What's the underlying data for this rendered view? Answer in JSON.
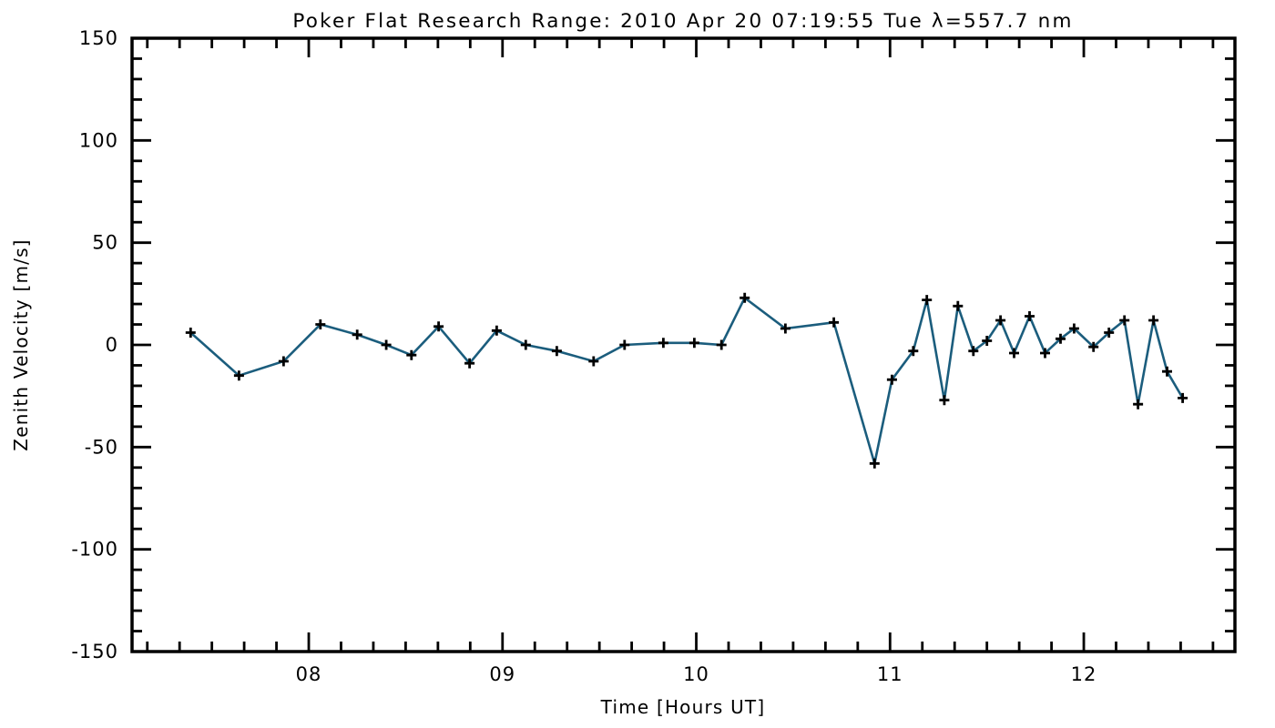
{
  "chart_data": {
    "type": "line",
    "title": "Poker Flat Research Range: 2010 Apr 20 07:19:55 Tue λ=557.7 nm",
    "xlabel": "Time [Hours UT]",
    "ylabel": "Zenith Velocity [m/s]",
    "xlim": [
      7.088,
      12.78
    ],
    "ylim": [
      -150,
      150
    ],
    "x_major_ticks": [
      8,
      9,
      10,
      11,
      12
    ],
    "x_tick_labels": [
      "08",
      "09",
      "10",
      "11",
      "12"
    ],
    "x_minor_per_hour": 6,
    "y_major_ticks": [
      -150,
      -100,
      -50,
      0,
      50,
      100,
      150
    ],
    "y_tick_labels": [
      "-150",
      "-100",
      "-50",
      "0",
      "50",
      "100",
      "150"
    ],
    "y_minor_interval": 10,
    "grid": false,
    "legend": null,
    "marker": "plus",
    "line_color": "#1b5d7d",
    "marker_color": "#000000",
    "axis_color": "#000000",
    "background": "#ffffff",
    "series": [
      {
        "name": "Zenith Velocity",
        "x": [
          7.39,
          7.64,
          7.87,
          8.06,
          8.25,
          8.4,
          8.53,
          8.67,
          8.83,
          8.97,
          9.12,
          9.28,
          9.47,
          9.63,
          9.83,
          9.99,
          10.13,
          10.25,
          10.46,
          10.71,
          10.92,
          11.01,
          11.12,
          11.19,
          11.28,
          11.35,
          11.43,
          11.5,
          11.57,
          11.64,
          11.72,
          11.8,
          11.88,
          11.95,
          12.05,
          12.13,
          12.21,
          12.28,
          12.36,
          12.43,
          12.51
        ],
        "y": [
          6,
          -15,
          -8,
          10,
          5,
          0,
          -5,
          9,
          -9,
          7,
          0,
          -3,
          -8,
          0,
          1,
          1,
          0,
          23,
          8,
          11,
          -58,
          -17,
          -3,
          22,
          -27,
          19,
          -3,
          2,
          12,
          -4,
          14,
          -4,
          3,
          8,
          -1,
          6,
          12,
          -29,
          12,
          -13,
          -26
        ]
      }
    ]
  }
}
